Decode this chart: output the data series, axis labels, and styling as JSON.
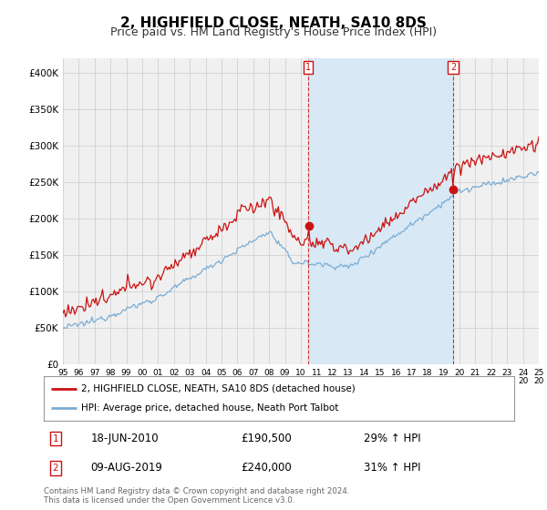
{
  "title": "2, HIGHFIELD CLOSE, NEATH, SA10 8DS",
  "subtitle": "Price paid vs. HM Land Registry's House Price Index (HPI)",
  "title_fontsize": 11,
  "subtitle_fontsize": 9,
  "background_color": "#ffffff",
  "plot_background": "#f0f0f0",
  "grid_color": "#cccccc",
  "hpi_color": "#7aadd4",
  "price_color": "#cc1111",
  "shade_color": "#d8e8f5",
  "annotation_box_color": "#cc1111",
  "ylabel_values": [
    0,
    50000,
    100000,
    150000,
    200000,
    250000,
    300000,
    350000,
    400000
  ],
  "ylabel_labels": [
    "£0",
    "£50K",
    "£100K",
    "£150K",
    "£200K",
    "£250K",
    "£300K",
    "£350K",
    "£400K"
  ],
  "ylim": [
    0,
    420000
  ],
  "sale1_year": 2010.46,
  "sale1_price": 190500,
  "sale2_year": 2019.6,
  "sale2_price": 240000,
  "sale1_date": "18-JUN-2010",
  "sale1_pct": "29% ↑ HPI",
  "sale2_date": "09-AUG-2019",
  "sale2_pct": "31% ↑ HPI",
  "legend_line1": "2, HIGHFIELD CLOSE, NEATH, SA10 8DS (detached house)",
  "legend_line2": "HPI: Average price, detached house, Neath Port Talbot",
  "footer": "Contains HM Land Registry data © Crown copyright and database right 2024.\nThis data is licensed under the Open Government Licence v3.0.",
  "x_start_year": 1995,
  "x_end_year": 2025
}
